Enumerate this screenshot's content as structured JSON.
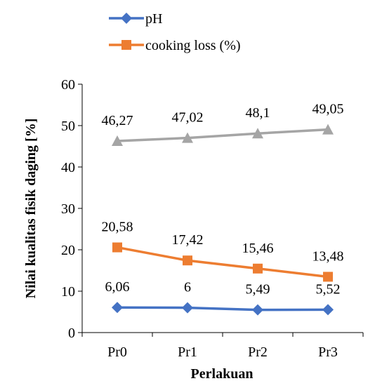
{
  "chart_data": {
    "type": "line",
    "categories": [
      "Pr0",
      "Pr1",
      "Pr2",
      "Pr3"
    ],
    "series": [
      {
        "name": "pH",
        "values": [
          6.06,
          6,
          5.49,
          5.52
        ],
        "labels": [
          "6,06",
          "6",
          "5,49",
          "5,52"
        ],
        "color": "#4472C4",
        "marker": "diamond"
      },
      {
        "name": "cooking loss (%)",
        "values": [
          20.58,
          17.42,
          15.46,
          13.48
        ],
        "labels": [
          "20,58",
          "17,42",
          "15,46",
          "13,48"
        ],
        "color": "#ED7D31",
        "marker": "square"
      },
      {
        "values": [
          46.27,
          47.02,
          48.1,
          49.05
        ],
        "labels": [
          "46,27",
          "47,02",
          "48,1",
          "49,05"
        ],
        "color": "#A5A5A5",
        "marker": "triangle"
      }
    ],
    "y_ticks": [
      "0",
      "10",
      "20",
      "30",
      "40",
      "50",
      "60"
    ],
    "ylim": [
      0,
      60
    ],
    "xlabel": "Perlakuan",
    "ylabel": "Nilai kualitas fisik  daging [%]",
    "grid": false,
    "legend_position": "top"
  }
}
